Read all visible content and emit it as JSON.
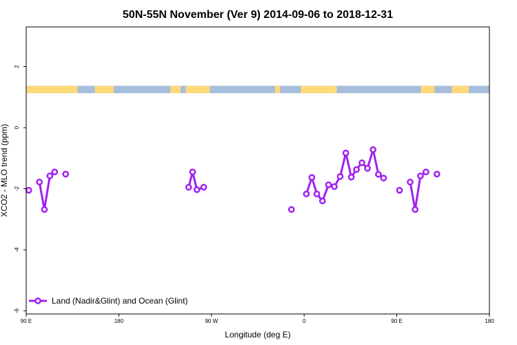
{
  "chart_data": {
    "type": "line",
    "title": "50N-55N November (Ver 9)   2014-09-06 to 2018-12-31",
    "xlabel": "Longitude (deg E)",
    "ylabel": "XCO2 - MLO trend (ppm)",
    "xlim": [
      -90,
      180
    ],
    "ylim": [
      -6.1,
      3.3
    ],
    "x_ticks": [
      {
        "value": -90,
        "label": "90 E"
      },
      {
        "value": -36,
        "label": "180"
      },
      {
        "value": 18,
        "label": "90 W"
      },
      {
        "value": 72,
        "label": "0"
      },
      {
        "value": 126,
        "label": "90 E"
      },
      {
        "value": 180,
        "label": "180"
      }
    ],
    "y_ticks": [
      {
        "value": -6,
        "label": "-6"
      },
      {
        "value": -4,
        "label": "-4"
      },
      {
        "value": -2,
        "label": "-2"
      },
      {
        "value": 0,
        "label": "0"
      },
      {
        "value": 2,
        "label": "2"
      }
    ],
    "land_band": {
      "y_range": [
        1.13,
        1.37
      ],
      "ocean_color": "#a6bddb",
      "land_color": "#fdd97a",
      "land_segments": [
        [
          -90,
          -60
        ],
        [
          -50,
          -39
        ],
        [
          -6,
          0
        ],
        [
          3,
          17
        ],
        [
          55,
          58
        ],
        [
          70,
          91
        ],
        [
          140,
          148
        ],
        [
          158,
          168
        ]
      ]
    },
    "series": [
      {
        "name": "Land (Nadir&Glint) and Ocean (Glint)",
        "color": "#a020f0",
        "segments": [
          {
            "x": [
              -88.5
            ],
            "y": [
              -2.05
            ]
          },
          {
            "x": [
              -82.3,
              -79.4,
              -76.2,
              -73.4
            ],
            "y": [
              -1.78,
              -2.68,
              -1.58,
              -1.45
            ]
          },
          {
            "x": [
              -67.0
            ],
            "y": [
              -1.52
            ]
          },
          {
            "x": [
              4.7,
              7.0,
              9.5,
              13.5
            ],
            "y": [
              -1.95,
              -1.45,
              -2.03,
              -1.95
            ]
          },
          {
            "x": [
              64.6
            ],
            "y": [
              -2.68
            ]
          },
          {
            "x": [
              73.3,
              76.5,
              79.4,
              82.7,
              86.2,
              89.6,
              93.0,
              96.3,
              99.5,
              102.5,
              105.7,
              108.9,
              112.2,
              115.3
            ],
            "y": [
              -2.17,
              -1.63,
              -2.17,
              -2.4,
              -1.87,
              -1.93,
              -1.6,
              -0.83,
              -1.62,
              -1.37,
              -1.15,
              -1.33,
              -0.72,
              -1.53
            ]
          },
          {
            "x": [
              118.3
            ],
            "y": [
              -1.65
            ]
          },
          {
            "x": [
              127.6
            ],
            "y": [
              -2.05
            ]
          },
          {
            "x": [
              133.8,
              136.7,
              139.8,
              143.0
            ],
            "y": [
              -1.78,
              -2.68,
              -1.58,
              -1.45
            ]
          },
          {
            "x": [
              149.4
            ],
            "y": [
              -1.52
            ]
          }
        ]
      }
    ],
    "legend": {
      "position": "bottom-left"
    },
    "grid": false
  }
}
